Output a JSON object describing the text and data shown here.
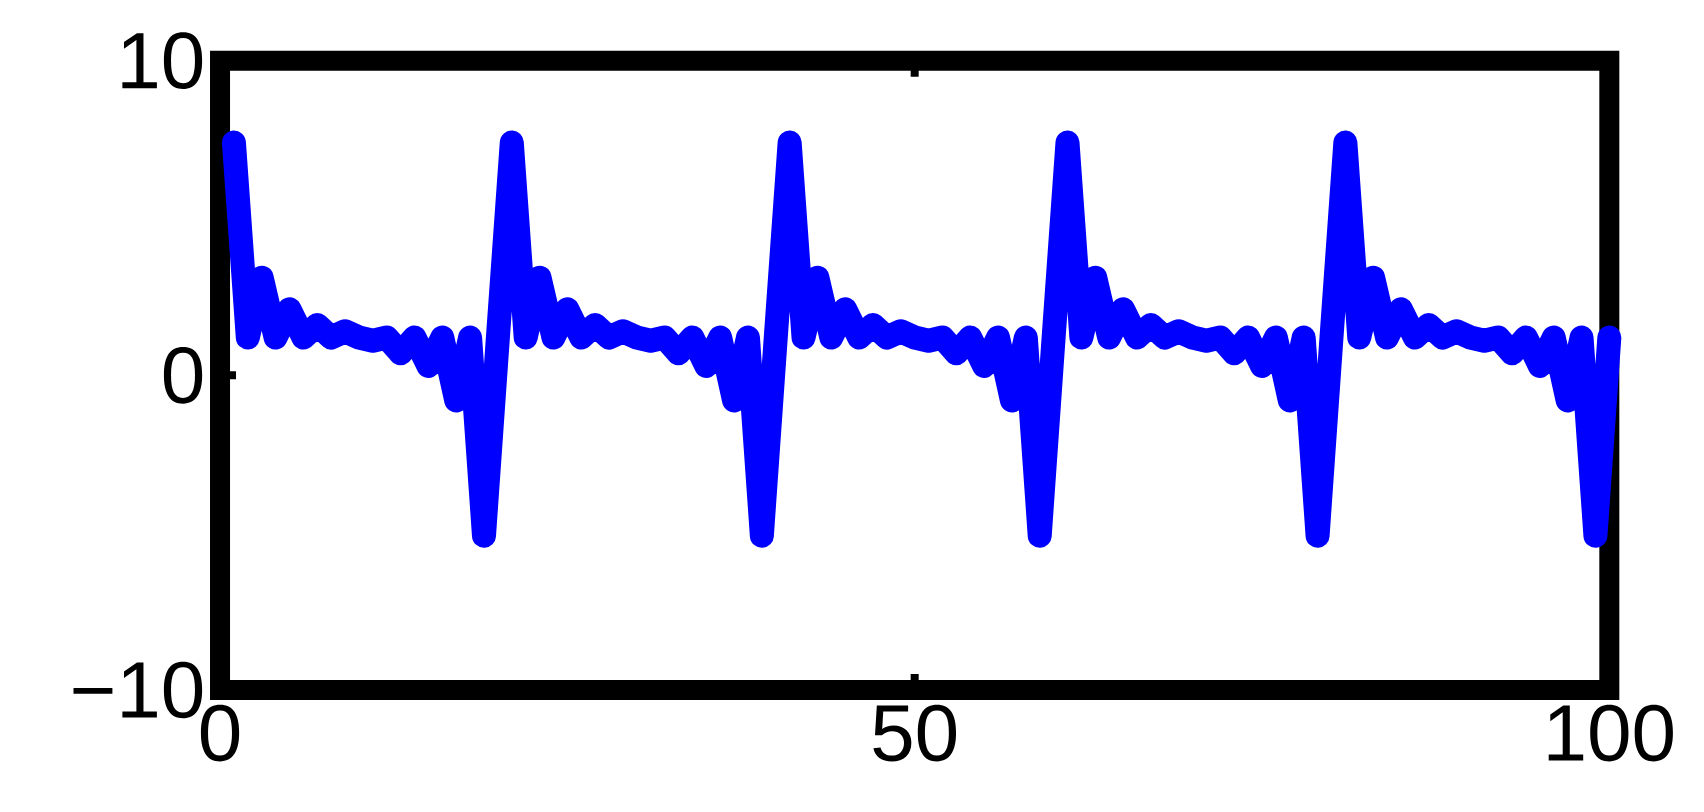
{
  "chart_data": {
    "type": "line",
    "x": [
      1,
      2,
      3,
      4,
      5,
      6,
      7,
      8,
      9,
      10,
      11,
      12,
      13,
      14,
      15,
      16,
      17,
      18,
      19,
      20,
      21,
      22,
      23,
      24,
      25,
      26,
      27,
      28,
      29,
      30,
      31,
      32,
      33,
      34,
      35,
      36,
      37,
      38,
      39,
      40,
      41,
      42,
      43,
      44,
      45,
      46,
      47,
      48,
      49,
      50,
      51,
      52,
      53,
      54,
      55,
      56,
      57,
      58,
      59,
      60,
      61,
      62,
      63,
      64,
      65,
      66,
      67,
      68,
      69,
      70,
      71,
      72,
      73,
      74,
      75,
      76,
      77,
      78,
      79,
      80,
      81,
      82,
      83,
      84,
      85,
      86,
      87,
      88,
      89,
      90,
      91,
      92,
      93,
      94,
      95,
      96,
      97,
      98,
      99,
      100
    ],
    "series": [
      {
        "color": "#0000ff",
        "values": [
          7.4,
          1.2,
          3.1,
          1.2,
          2.1,
          1.2,
          1.6,
          1.2,
          1.4,
          1.2,
          1.1,
          1.2,
          0.7,
          1.2,
          0.3,
          1.2,
          -0.8,
          1.2,
          -5.1,
          1.2,
          7.4,
          1.2,
          3.1,
          1.2,
          2.1,
          1.2,
          1.6,
          1.2,
          1.4,
          1.2,
          1.1,
          1.2,
          0.7,
          1.2,
          0.3,
          1.2,
          -0.8,
          1.2,
          -5.1,
          1.2,
          7.4,
          1.2,
          3.1,
          1.2,
          2.1,
          1.2,
          1.6,
          1.2,
          1.4,
          1.2,
          1.1,
          1.2,
          0.7,
          1.2,
          0.3,
          1.2,
          -0.8,
          1.2,
          -5.1,
          1.2,
          7.4,
          1.2,
          3.1,
          1.2,
          2.1,
          1.2,
          1.6,
          1.2,
          1.4,
          1.2,
          1.1,
          1.2,
          0.7,
          1.2,
          0.3,
          1.2,
          -0.8,
          1.2,
          -5.1,
          1.2,
          7.4,
          1.2,
          3.1,
          1.2,
          2.1,
          1.2,
          1.6,
          1.2,
          1.4,
          1.2,
          1.1,
          1.2,
          0.7,
          1.2,
          0.3,
          1.2,
          -0.8,
          1.2,
          -5.1,
          1.2
        ]
      }
    ],
    "xlim": [
      0,
      100
    ],
    "ylim": [
      -10,
      10
    ],
    "xticks": [
      0,
      50,
      100
    ],
    "yticks": [
      {
        "value": -10,
        "label": "−10"
      },
      0,
      10
    ],
    "grid": false,
    "marker": "none",
    "line_style": "solid"
  }
}
